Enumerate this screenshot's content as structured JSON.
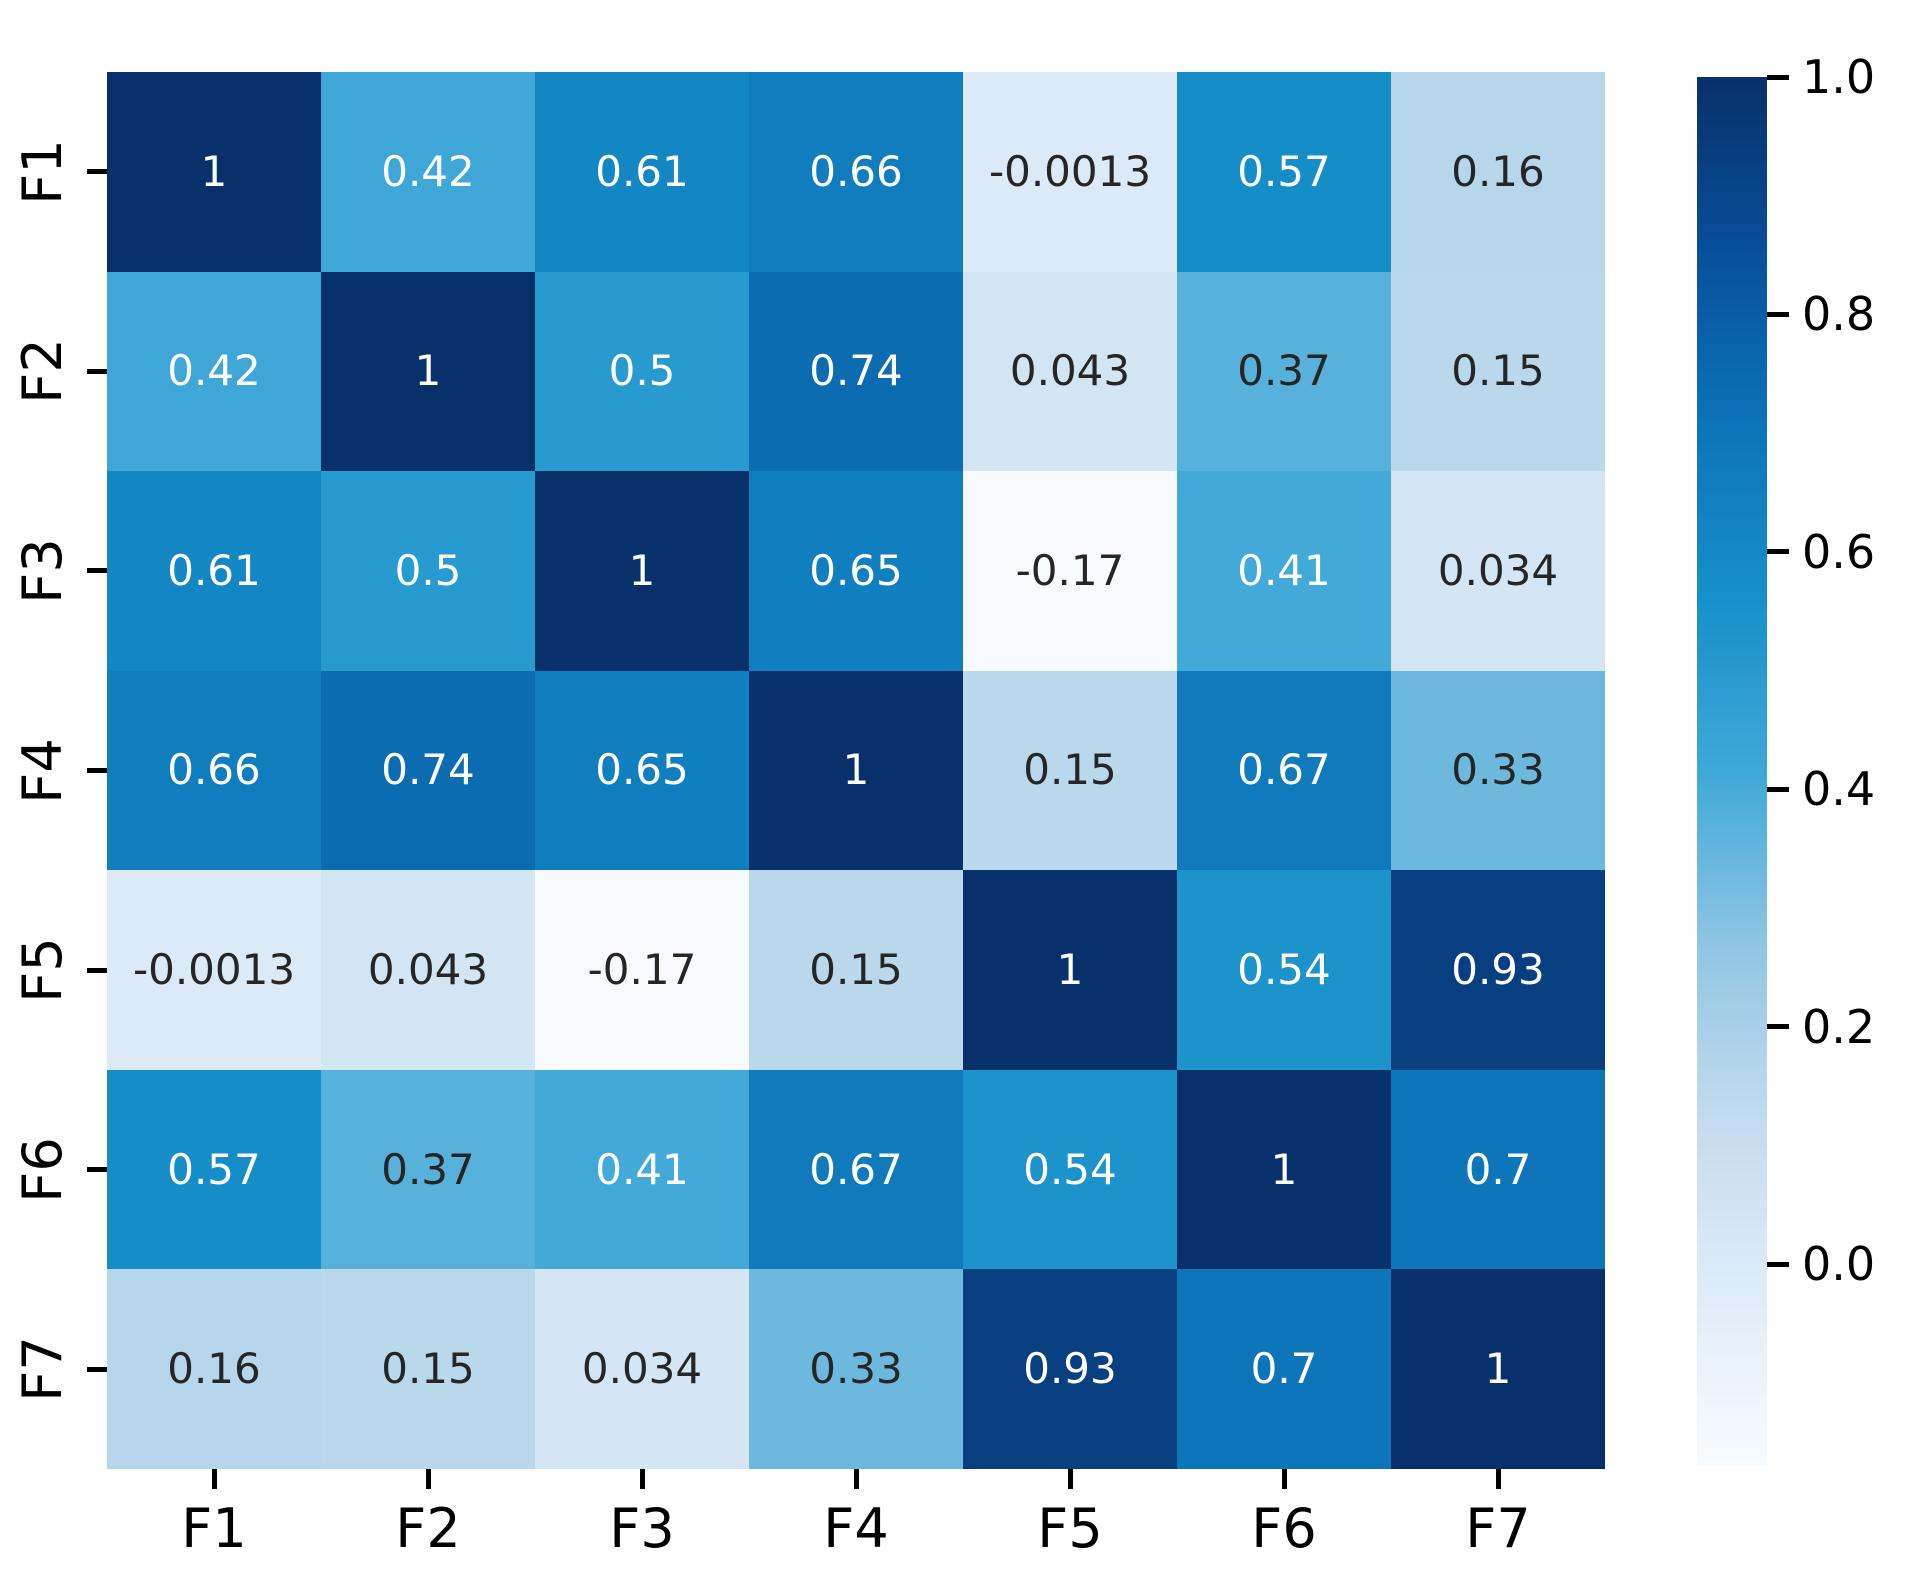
{
  "chart_data": {
    "type": "heatmap",
    "title": "",
    "description": "Correlation matrix heatmap of features F1-F7 with Blues colormap and annotated coefficients",
    "x_tick_labels": [
      "F1",
      "F2",
      "F3",
      "F4",
      "F5",
      "F6",
      "F7"
    ],
    "y_tick_labels": [
      "F1",
      "F2",
      "F3",
      "F4",
      "F5",
      "F6",
      "F7"
    ],
    "matrix": [
      [
        1,
        0.42,
        0.61,
        0.66,
        -0.0013,
        0.57,
        0.16
      ],
      [
        0.42,
        1,
        0.5,
        0.74,
        0.043,
        0.37,
        0.15
      ],
      [
        0.61,
        0.5,
        1,
        0.65,
        -0.17,
        0.41,
        0.034
      ],
      [
        0.66,
        0.74,
        0.65,
        1,
        0.15,
        0.67,
        0.33
      ],
      [
        -0.0013,
        0.043,
        -0.17,
        0.15,
        1,
        0.54,
        0.93
      ],
      [
        0.57,
        0.37,
        0.41,
        0.67,
        0.54,
        1,
        0.7
      ],
      [
        0.16,
        0.15,
        0.034,
        0.33,
        0.93,
        0.7,
        1
      ]
    ],
    "cell_labels": [
      [
        "1",
        "0.42",
        "0.61",
        "0.66",
        "-0.0013",
        "0.57",
        "0.16"
      ],
      [
        "0.42",
        "1",
        "0.5",
        "0.74",
        "0.043",
        "0.37",
        "0.15"
      ],
      [
        "0.61",
        "0.5",
        "1",
        "0.65",
        "-0.17",
        "0.41",
        "0.034"
      ],
      [
        "0.66",
        "0.74",
        "0.65",
        "1",
        "0.15",
        "0.67",
        "0.33"
      ],
      [
        "-0.0013",
        "0.043",
        "-0.17",
        "0.15",
        "1",
        "0.54",
        "0.93"
      ],
      [
        "0.57",
        "0.37",
        "0.41",
        "0.67",
        "0.54",
        "1",
        "0.7"
      ],
      [
        "0.16",
        "0.15",
        "0.034",
        "0.33",
        "0.93",
        "0.7",
        "1"
      ]
    ],
    "colormap": {
      "name": "Blues",
      "vmin": -0.17,
      "vmax": 1.0,
      "stops": [
        {
          "t": 0.0,
          "color": "#f7fbff"
        },
        {
          "t": 0.125,
          "color": "#dfecf7"
        },
        {
          "t": 0.25,
          "color": "#c3dcee"
        },
        {
          "t": 0.375,
          "color": "#8fc5e3"
        },
        {
          "t": 0.5,
          "color": "#3fa8d8"
        },
        {
          "t": 0.625,
          "color": "#1690c9"
        },
        {
          "t": 0.75,
          "color": "#0c74b8"
        },
        {
          "t": 0.875,
          "color": "#084f9a"
        },
        {
          "t": 1.0,
          "color": "#08306b"
        }
      ]
    },
    "colorbar": {
      "position": "right",
      "ticks": [
        {
          "value": 1.0,
          "label": "1.0"
        },
        {
          "value": 0.8,
          "label": "0.8"
        },
        {
          "value": 0.6,
          "label": "0.6"
        },
        {
          "value": 0.4,
          "label": "0.4"
        },
        {
          "value": 0.2,
          "label": "0.2"
        },
        {
          "value": 0.0,
          "label": "0.0"
        }
      ]
    },
    "annotation_text_colors": {
      "on_dark": "#ffffff",
      "on_light": "#262626",
      "white_text_min_value": 0.39
    },
    "axis_color": "#000000",
    "background": "#ffffff",
    "grid": false,
    "legend": false
  }
}
